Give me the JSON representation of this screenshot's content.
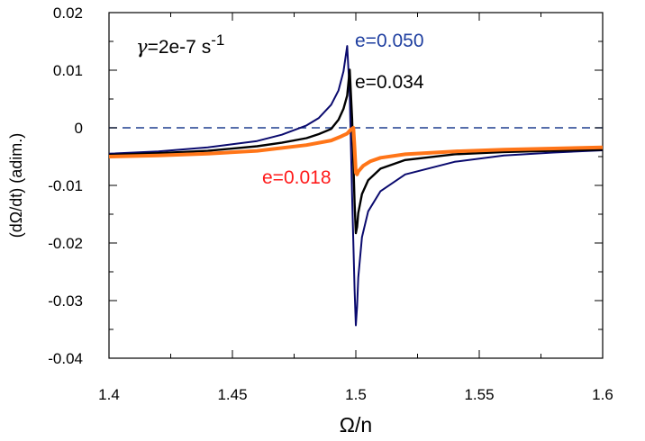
{
  "chart_data": {
    "type": "line",
    "title": "",
    "xlabel": "Ω/n",
    "ylabel": "(dΩ/dt)  (adim.)",
    "xlim": [
      1.4,
      1.6
    ],
    "ylim": [
      -0.04,
      0.02
    ],
    "xticks": [
      1.4,
      1.45,
      1.5,
      1.55,
      1.6
    ],
    "xtick_labels": [
      "1.4",
      "1.45",
      "1.5",
      "1.55",
      "1.6"
    ],
    "yticks": [
      -0.04,
      -0.03,
      -0.02,
      -0.01,
      0,
      0.01,
      0.02
    ],
    "ytick_labels": [
      "-0.04",
      "-0.03",
      "-0.02",
      "-0.01",
      "0",
      "0.01",
      "0.02"
    ],
    "grid": false,
    "reference_line": {
      "y": 0,
      "style": "dashed",
      "color": "#1f3f8f"
    },
    "annotation": {
      "gamma_symbol": "γ",
      "gamma_text": "=2e-7 s",
      "gamma_exp": "-1"
    },
    "series": [
      {
        "name": "e=0.050",
        "label_color": "#1f3fa0",
        "line_color": "#0a0a6e",
        "width_class": "thin",
        "x": [
          1.4,
          1.42,
          1.44,
          1.46,
          1.47,
          1.48,
          1.485,
          1.49,
          1.493,
          1.495,
          1.4965,
          1.4975,
          1.4985,
          1.4995,
          1.5,
          1.5005,
          1.501,
          1.5025,
          1.505,
          1.51,
          1.52,
          1.54,
          1.56,
          1.58,
          1.6
        ],
        "y": [
          -0.0045,
          -0.0041,
          -0.0034,
          -0.0023,
          -0.0012,
          0.0004,
          0.0017,
          0.004,
          0.0065,
          0.0098,
          0.0142,
          0.006,
          -0.012,
          -0.028,
          -0.0343,
          -0.031,
          -0.026,
          -0.019,
          -0.0145,
          -0.011,
          -0.0081,
          -0.0059,
          -0.0048,
          -0.0043,
          -0.0039
        ]
      },
      {
        "name": "e=0.034",
        "label_color": "#000000",
        "line_color": "#000000",
        "width_class": "medium",
        "x": [
          1.4,
          1.42,
          1.44,
          1.46,
          1.47,
          1.48,
          1.485,
          1.49,
          1.493,
          1.495,
          1.4965,
          1.4975,
          1.4985,
          1.4995,
          1.5,
          1.5005,
          1.501,
          1.5025,
          1.505,
          1.51,
          1.52,
          1.54,
          1.56,
          1.58,
          1.6
        ],
        "y": [
          -0.0047,
          -0.0044,
          -0.004,
          -0.0032,
          -0.0026,
          -0.0018,
          -0.0011,
          -0.0002,
          0.0014,
          0.0033,
          0.0056,
          0.0101,
          0.0015,
          -0.013,
          -0.0183,
          -0.0172,
          -0.0148,
          -0.0115,
          -0.0091,
          -0.0071,
          -0.0056,
          -0.0046,
          -0.0042,
          -0.004,
          -0.0038
        ]
      },
      {
        "name": "e=0.018",
        "label_color": "#ff1a1a",
        "line_color": "#ff7518",
        "width_class": "thick",
        "x": [
          1.4,
          1.42,
          1.44,
          1.46,
          1.48,
          1.49,
          1.494,
          1.4965,
          1.498,
          1.499,
          1.4995,
          1.5,
          1.5005,
          1.501,
          1.503,
          1.506,
          1.51,
          1.52,
          1.54,
          1.56,
          1.58,
          1.6
        ],
        "y": [
          -0.005,
          -0.0048,
          -0.0045,
          -0.004,
          -0.003,
          -0.0022,
          -0.0015,
          -0.001,
          -0.0003,
          0.0,
          -0.0035,
          -0.0078,
          -0.0081,
          -0.0076,
          -0.0066,
          -0.0058,
          -0.0052,
          -0.0046,
          -0.0041,
          -0.0038,
          -0.0036,
          -0.0034
        ]
      }
    ]
  }
}
